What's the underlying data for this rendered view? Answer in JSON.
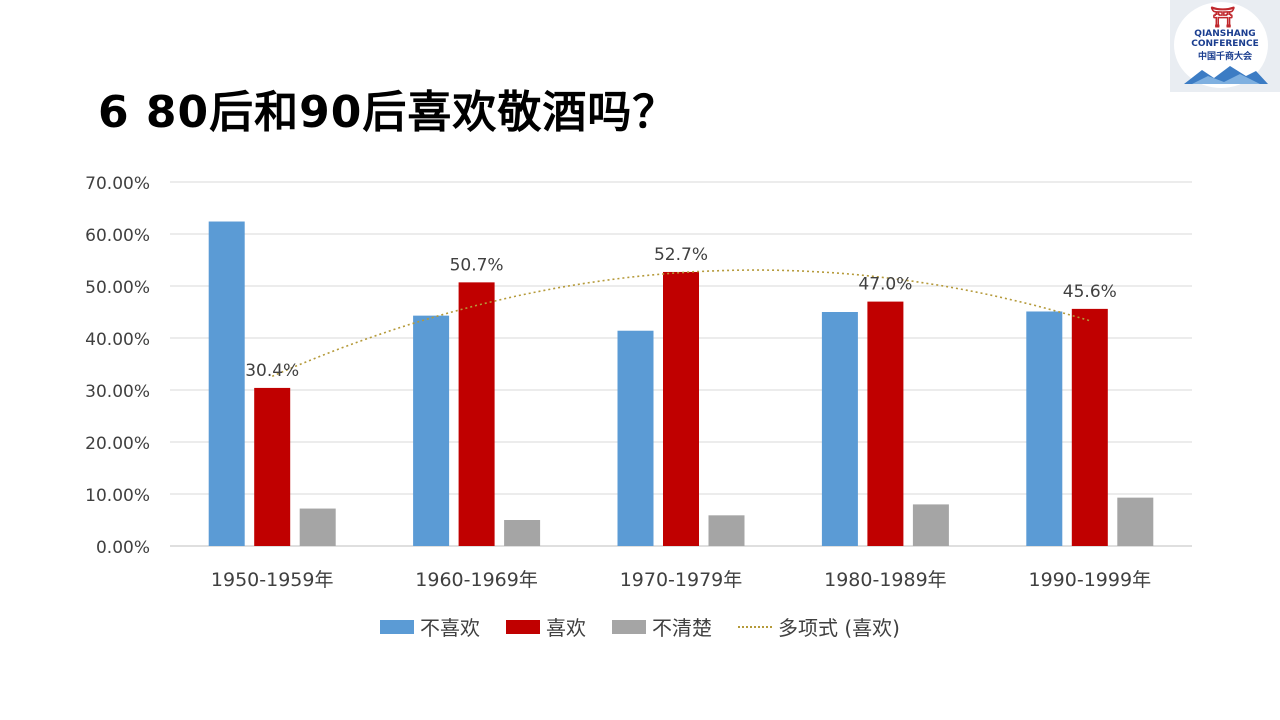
{
  "slide": {
    "title": "6 80后和90后喜欢敬酒吗？"
  },
  "logo": {
    "line1": "QIANSHANG",
    "line2": "CONFERENCE",
    "line3": "中国千商大会"
  },
  "colors": {
    "dislike": "#5b9bd5",
    "like": "#c00000",
    "unsure": "#a5a5a5",
    "trend": "#b59a3a",
    "grid": "#d9d9d9",
    "axis_text": "#404040"
  },
  "chart_data": {
    "type": "bar",
    "categories": [
      "1950-1959年",
      "1960-1969年",
      "1970-1979年",
      "1980-1989年",
      "1990-1999年"
    ],
    "series": [
      {
        "name": "不喜欢",
        "values": [
          62.4,
          44.3,
          41.4,
          45.0,
          45.1
        ]
      },
      {
        "name": "喜欢",
        "values": [
          30.4,
          50.7,
          52.7,
          47.0,
          45.6
        ]
      },
      {
        "name": "不清楚",
        "values": [
          7.2,
          5.0,
          5.9,
          8.0,
          9.3
        ]
      }
    ],
    "data_labels": [
      "30.4%",
      "50.7%",
      "52.7%",
      "47.0%",
      "45.6%"
    ],
    "trendline": {
      "name": "多项式 (喜欢)",
      "type": "polynomial",
      "series": "喜欢"
    },
    "y_ticks": [
      "0.00%",
      "10.00%",
      "20.00%",
      "30.00%",
      "40.00%",
      "50.00%",
      "60.00%",
      "70.00%"
    ],
    "ylim": [
      0,
      70
    ],
    "grid": true,
    "legend_position": "bottom"
  }
}
